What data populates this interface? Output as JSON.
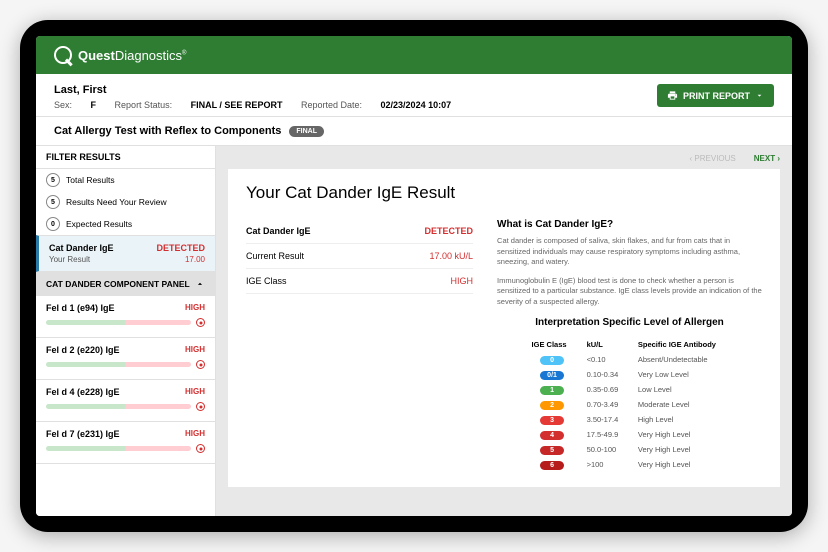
{
  "brand": {
    "name1": "Quest",
    "name2": "Diagnostics",
    "tm": "®"
  },
  "patient": {
    "name": "Last, First",
    "sex_label": "Sex:",
    "sex_value": "F",
    "status_label": "Report Status:",
    "status_value": "FINAL / SEE REPORT",
    "reported_label": "Reported Date:",
    "reported_value": "02/23/2024 10:07"
  },
  "print_button": "PRINT REPORT",
  "test_title": "Cat Allergy Test with Reflex to Components",
  "test_pill": "FINAL",
  "filter": {
    "header": "FILTER RESULTS",
    "rows": [
      {
        "count": "5",
        "label": "Total Results"
      },
      {
        "count": "5",
        "label": "Results Need Your Review"
      },
      {
        "count": "0",
        "label": "Expected Results"
      }
    ]
  },
  "selected_result": {
    "name": "Cat Dander IgE",
    "flag": "DETECTED",
    "sub_label": "Your Result",
    "sub_value": "17.00"
  },
  "panel": {
    "title": "CAT DANDER COMPONENT PANEL",
    "items": [
      {
        "name": "Fel d 1 (e94) IgE",
        "flag": "HIGH"
      },
      {
        "name": "Fel d 2 (e220) IgE",
        "flag": "HIGH"
      },
      {
        "name": "Fel d 4 (e228) IgE",
        "flag": "HIGH"
      },
      {
        "name": "Fel d 7 (e231) IgE",
        "flag": "HIGH"
      }
    ]
  },
  "nav": {
    "prev": "PREVIOUS",
    "next": "NEXT"
  },
  "card": {
    "title": "Your Cat Dander IgE Result",
    "rows": [
      {
        "label": "Cat Dander IgE",
        "value": "DETECTED",
        "red": true
      },
      {
        "label": "Current Result",
        "value": "17.00 kU/L",
        "red": true
      },
      {
        "label": "IGE Class",
        "value": "HIGH",
        "red": true
      }
    ],
    "info_title": "What is Cat Dander IgE?",
    "info_p1": "Cat dander is composed of saliva, skin flakes, and fur from cats that in sensitized individuals may cause respiratory symptoms including asthma, sneezing, and watery.",
    "info_p2": "Immunoglobulin E (IgE) blood test is done to check whether a person is sensitized to a particular substance.  IgE class levels provide an indication of the severity of a suspected allergy.",
    "interp_title": "Interpretation Specific Level of Allergen",
    "interp_headers": [
      "IGE Class",
      "kU/L",
      "Specific IGE Antibody"
    ],
    "interp_rows": [
      {
        "cls": "0",
        "color": "#4fc3f7",
        "range": "<0.10",
        "antibody": "Absent/Undetectable"
      },
      {
        "cls": "0/1",
        "color": "#1976d2",
        "range": "0.10-0.34",
        "antibody": "Very Low Level"
      },
      {
        "cls": "1",
        "color": "#4caf50",
        "range": "0.35-0.69",
        "antibody": "Low Level"
      },
      {
        "cls": "2",
        "color": "#ff9800",
        "range": "0.70-3.49",
        "antibody": "Moderate Level"
      },
      {
        "cls": "3",
        "color": "#e53935",
        "range": "3.50-17.4",
        "antibody": "High Level"
      },
      {
        "cls": "4",
        "color": "#d32f2f",
        "range": "17.5-49.9",
        "antibody": "Very High Level"
      },
      {
        "cls": "5",
        "color": "#c62828",
        "range": "50.0-100",
        "antibody": "Very High Level"
      },
      {
        "cls": "6",
        "color": "#b71c1c",
        "range": ">100",
        "antibody": "Very High Level"
      }
    ]
  }
}
